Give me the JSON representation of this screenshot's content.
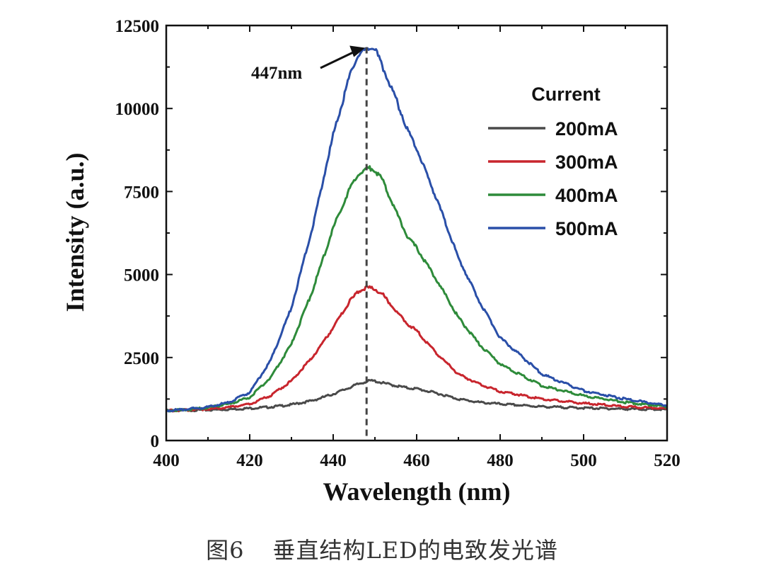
{
  "chart_data": {
    "type": "line",
    "title": "",
    "xlabel": "Wavelength (nm)",
    "ylabel": "Intensity (a.u.)",
    "xlim": [
      400,
      520
    ],
    "ylim": [
      0,
      12500
    ],
    "xticks": [
      400,
      420,
      440,
      460,
      480,
      500,
      520
    ],
    "yticks": [
      0,
      2500,
      5000,
      7500,
      10000,
      12500
    ],
    "grid": false,
    "legend": {
      "title": "Current",
      "position": "top-right"
    },
    "x": [
      400,
      405,
      410,
      415,
      420,
      425,
      430,
      435,
      440,
      444,
      446,
      448,
      449,
      450,
      452,
      455,
      458,
      460,
      465,
      470,
      475,
      480,
      490,
      500,
      510,
      520
    ],
    "series": [
      {
        "name": "200mA",
        "color": "#4a4a4a",
        "values": [
          900,
          910,
          920,
          940,
          970,
          1010,
          1080,
          1200,
          1400,
          1600,
          1700,
          1780,
          1800,
          1790,
          1730,
          1650,
          1580,
          1560,
          1420,
          1250,
          1150,
          1100,
          1020,
          980,
          950,
          930
        ]
      },
      {
        "name": "300mA",
        "color": "#c8252d",
        "values": [
          900,
          920,
          950,
          1000,
          1100,
          1350,
          1800,
          2500,
          3400,
          4200,
          4480,
          4600,
          4600,
          4570,
          4380,
          3900,
          3500,
          3300,
          2600,
          2000,
          1700,
          1480,
          1250,
          1120,
          1020,
          960
        ]
      },
      {
        "name": "400mA",
        "color": "#2e8b3a",
        "values": [
          900,
          930,
          990,
          1100,
          1300,
          1900,
          2900,
          4500,
          6400,
          7600,
          8000,
          8200,
          8200,
          8150,
          7800,
          6900,
          6100,
          5800,
          4800,
          3700,
          2900,
          2300,
          1650,
          1350,
          1150,
          1020
        ]
      },
      {
        "name": "500mA",
        "color": "#2a4fa8",
        "values": [
          900,
          940,
          1010,
          1150,
          1450,
          2400,
          4000,
          6400,
          9200,
          11000,
          11600,
          11800,
          11850,
          11800,
          11200,
          10300,
          9300,
          8800,
          7200,
          5500,
          4200,
          3100,
          2000,
          1500,
          1250,
          1050
        ]
      }
    ],
    "annotations": [
      {
        "text": "447nm",
        "target_x": 448,
        "target_y": 11850,
        "style": "arrow"
      }
    ],
    "reference_line": {
      "x": 448,
      "style": "dashed",
      "color": "#444444"
    }
  },
  "caption": {
    "figure_label": "图6",
    "text": "垂直结构LED的电致发光谱"
  }
}
